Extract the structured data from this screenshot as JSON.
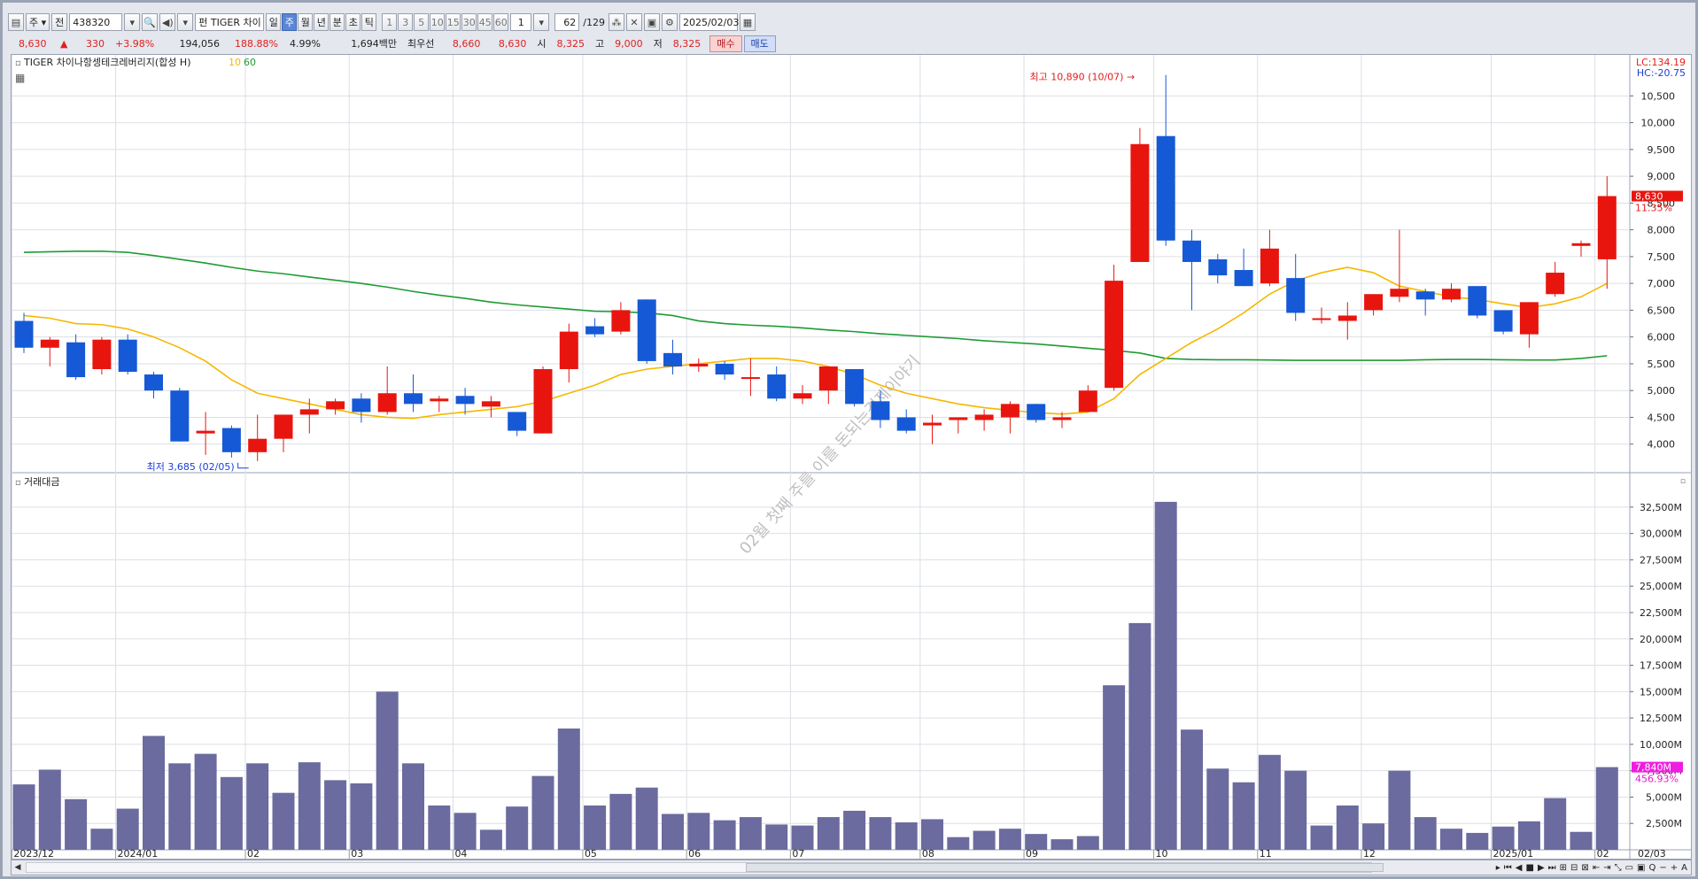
{
  "toolbar": {
    "period_select": "주",
    "mode_label": "전",
    "code": "438320",
    "etf_badge": "펀",
    "name": "TIGER 차이",
    "timeframes": [
      "일",
      "주",
      "월",
      "년",
      "분",
      "초",
      "틱"
    ],
    "selected_timeframe": "주",
    "intervals": [
      "1",
      "3",
      "5",
      "10",
      "15",
      "30",
      "45",
      "60"
    ],
    "interval_value": "1",
    "count_value": "62",
    "count_total": "/129",
    "date": "2025/02/03"
  },
  "quote": {
    "price": "8,630",
    "arrow": "▲",
    "change": "330",
    "change_pct": "+3.98%",
    "volume": "194,056",
    "volume_ratio": "188.88%",
    "turnover": "4.99%",
    "amount": "1,694백만",
    "best_bid_label": "최우선",
    "best_ask": "8,660",
    "best_bid": "8,630",
    "open_label": "시",
    "open": "8,325",
    "high_label": "고",
    "high": "9,000",
    "low_label": "저",
    "low": "8,325",
    "buy_label": "매수",
    "sell_label": "매도"
  },
  "colors": {
    "up": "#e8150f",
    "down": "#1559d6",
    "ma10": "#f5b800",
    "ma60": "#1e9b33",
    "volume_bar": "#6b6b9f",
    "price_tag_bg": "#e8150f",
    "volume_tag_bg": "#f01ce0"
  },
  "chart_data": {
    "type": "candlestick",
    "title": "TIGER 차이나항셍테크레버리지(합성 H)",
    "ma_labels": [
      "10",
      "60"
    ],
    "corner_labels": [
      "LC:134.19",
      "HC:-20.75"
    ],
    "y_ticks": [
      4000,
      4500,
      5000,
      5500,
      6000,
      6500,
      7000,
      7500,
      8000,
      8500,
      9000,
      9500,
      10000,
      10500
    ],
    "y_range": [
      3500,
      11100
    ],
    "max_annotation": "최고 10,890 (10/07)",
    "min_annotation": "최저 3,685 (02/05)",
    "last_price_tag": "8,630",
    "last_change_tag": "11.35%",
    "watermark": "02월 첫째 주를 이를 돈되는경제이야기",
    "x_labels": [
      {
        "i": 0,
        "text": "2023/12"
      },
      {
        "i": 4,
        "text": "2024/01"
      },
      {
        "i": 9,
        "text": "02"
      },
      {
        "i": 13,
        "text": "03"
      },
      {
        "i": 17,
        "text": "04"
      },
      {
        "i": 22,
        "text": "05"
      },
      {
        "i": 26,
        "text": "06"
      },
      {
        "i": 30,
        "text": "07"
      },
      {
        "i": 35,
        "text": "08"
      },
      {
        "i": 39,
        "text": "09"
      },
      {
        "i": 44,
        "text": "10"
      },
      {
        "i": 48,
        "text": "11"
      },
      {
        "i": 52,
        "text": "12"
      },
      {
        "i": 57,
        "text": "2025/01"
      },
      {
        "i": 61,
        "text": "02"
      }
    ],
    "right_axis_date": "02/03",
    "candles": [
      {
        "o": 6300,
        "h": 6450,
        "l": 5700,
        "c": 5800
      },
      {
        "o": 5800,
        "h": 6000,
        "l": 5450,
        "c": 5950
      },
      {
        "o": 5900,
        "h": 6050,
        "l": 5200,
        "c": 5250
      },
      {
        "o": 5400,
        "h": 6000,
        "l": 5300,
        "c": 5950
      },
      {
        "o": 5950,
        "h": 6050,
        "l": 5300,
        "c": 5350
      },
      {
        "o": 5300,
        "h": 5350,
        "l": 4850,
        "c": 5000
      },
      {
        "o": 5000,
        "h": 5050,
        "l": 4050,
        "c": 4050
      },
      {
        "o": 4200,
        "h": 4600,
        "l": 3800,
        "c": 4250
      },
      {
        "o": 4300,
        "h": 4350,
        "l": 3750,
        "c": 3850
      },
      {
        "o": 3850,
        "h": 4550,
        "l": 3685,
        "c": 4100
      },
      {
        "o": 4100,
        "h": 4550,
        "l": 3850,
        "c": 4550
      },
      {
        "o": 4550,
        "h": 4850,
        "l": 4200,
        "c": 4650
      },
      {
        "o": 4650,
        "h": 4850,
        "l": 4550,
        "c": 4800
      },
      {
        "o": 4850,
        "h": 4950,
        "l": 4400,
        "c": 4600
      },
      {
        "o": 4600,
        "h": 5450,
        "l": 4550,
        "c": 4950
      },
      {
        "o": 4950,
        "h": 5300,
        "l": 4600,
        "c": 4750
      },
      {
        "o": 4800,
        "h": 4900,
        "l": 4600,
        "c": 4850
      },
      {
        "o": 4900,
        "h": 5050,
        "l": 4550,
        "c": 4750
      },
      {
        "o": 4700,
        "h": 4900,
        "l": 4500,
        "c": 4800
      },
      {
        "o": 4600,
        "h": 4600,
        "l": 4150,
        "c": 4250
      },
      {
        "o": 4200,
        "h": 5450,
        "l": 4200,
        "c": 5400
      },
      {
        "o": 5400,
        "h": 6250,
        "l": 5150,
        "c": 6100
      },
      {
        "o": 6200,
        "h": 6350,
        "l": 6000,
        "c": 6050
      },
      {
        "o": 6100,
        "h": 6650,
        "l": 6050,
        "c": 6500
      },
      {
        "o": 6700,
        "h": 6700,
        "l": 5500,
        "c": 5550
      },
      {
        "o": 5700,
        "h": 5950,
        "l": 5300,
        "c": 5450
      },
      {
        "o": 5450,
        "h": 5600,
        "l": 5350,
        "c": 5500
      },
      {
        "o": 5500,
        "h": 5550,
        "l": 5200,
        "c": 5300
      },
      {
        "o": 5250,
        "h": 5600,
        "l": 4900,
        "c": 5250
      },
      {
        "o": 5300,
        "h": 5450,
        "l": 4800,
        "c": 4850
      },
      {
        "o": 4850,
        "h": 5100,
        "l": 4750,
        "c": 4950
      },
      {
        "o": 5000,
        "h": 5450,
        "l": 4750,
        "c": 5450
      },
      {
        "o": 5400,
        "h": 5400,
        "l": 4700,
        "c": 4750
      },
      {
        "o": 4800,
        "h": 5000,
        "l": 4300,
        "c": 4450
      },
      {
        "o": 4500,
        "h": 4650,
        "l": 4200,
        "c": 4250
      },
      {
        "o": 4350,
        "h": 4550,
        "l": 4000,
        "c": 4400
      },
      {
        "o": 4450,
        "h": 4500,
        "l": 4200,
        "c": 4500
      },
      {
        "o": 4450,
        "h": 4650,
        "l": 4250,
        "c": 4550
      },
      {
        "o": 4500,
        "h": 4800,
        "l": 4200,
        "c": 4750
      },
      {
        "o": 4750,
        "h": 4750,
        "l": 4400,
        "c": 4450
      },
      {
        "o": 4450,
        "h": 4600,
        "l": 4300,
        "c": 4500
      },
      {
        "o": 4600,
        "h": 5100,
        "l": 4600,
        "c": 5000
      },
      {
        "o": 5050,
        "h": 7350,
        "l": 5000,
        "c": 7050
      },
      {
        "o": 7400,
        "h": 9900,
        "l": 7400,
        "c": 9600
      },
      {
        "o": 9750,
        "h": 10890,
        "l": 7700,
        "c": 7800
      },
      {
        "o": 7800,
        "h": 8000,
        "l": 6500,
        "c": 7400
      },
      {
        "o": 7450,
        "h": 7550,
        "l": 7000,
        "c": 7150
      },
      {
        "o": 7250,
        "h": 7650,
        "l": 6950,
        "c": 6950
      },
      {
        "o": 7000,
        "h": 8000,
        "l": 6950,
        "c": 7650
      },
      {
        "o": 7100,
        "h": 7550,
        "l": 6300,
        "c": 6450
      },
      {
        "o": 6350,
        "h": 6550,
        "l": 6250,
        "c": 6350
      },
      {
        "o": 6300,
        "h": 6650,
        "l": 5950,
        "c": 6400
      },
      {
        "o": 6500,
        "h": 6800,
        "l": 6400,
        "c": 6800
      },
      {
        "o": 6750,
        "h": 8000,
        "l": 6650,
        "c": 6900
      },
      {
        "o": 6850,
        "h": 6900,
        "l": 6400,
        "c": 6700
      },
      {
        "o": 6700,
        "h": 7000,
        "l": 6650,
        "c": 6900
      },
      {
        "o": 6950,
        "h": 6950,
        "l": 6350,
        "c": 6400
      },
      {
        "o": 6500,
        "h": 6500,
        "l": 6050,
        "c": 6100
      },
      {
        "o": 6050,
        "h": 6650,
        "l": 5800,
        "c": 6650
      },
      {
        "o": 6800,
        "h": 7400,
        "l": 6750,
        "c": 7200
      },
      {
        "o": 7700,
        "h": 7800,
        "l": 7500,
        "c": 7750
      },
      {
        "o": 7450,
        "h": 9000,
        "l": 6900,
        "c": 8630
      }
    ],
    "ma10": [
      6400,
      6350,
      6250,
      6230,
      6150,
      6000,
      5800,
      5550,
      5200,
      4950,
      4850,
      4750,
      4650,
      4550,
      4500,
      4480,
      4550,
      4600,
      4650,
      4700,
      4800,
      4950,
      5100,
      5300,
      5400,
      5450,
      5500,
      5550,
      5600,
      5600,
      5550,
      5450,
      5300,
      5100,
      4950,
      4850,
      4750,
      4680,
      4630,
      4590,
      4560,
      4600,
      4850,
      5300,
      5600,
      5900,
      6150,
      6450,
      6800,
      7050,
      7200,
      7300,
      7200,
      6950,
      6850,
      6750,
      6700,
      6620,
      6550,
      6620,
      6750,
      7000
    ],
    "ma60": [
      7580,
      7590,
      7600,
      7600,
      7580,
      7520,
      7450,
      7380,
      7300,
      7230,
      7180,
      7120,
      7060,
      7000,
      6930,
      6850,
      6780,
      6720,
      6650,
      6600,
      6560,
      6520,
      6480,
      6470,
      6450,
      6400,
      6300,
      6250,
      6220,
      6200,
      6170,
      6130,
      6100,
      6060,
      6030,
      6000,
      5970,
      5930,
      5900,
      5870,
      5830,
      5790,
      5750,
      5700,
      5600,
      5580,
      5575,
      5575,
      5570,
      5565,
      5565,
      5565,
      5565,
      5565,
      5575,
      5580,
      5580,
      5575,
      5570,
      5570,
      5600,
      5650
    ],
    "volume_title": "거래대금",
    "volume_ticks": [
      "2,500M",
      "5,000M",
      "7,500M",
      "10,000M",
      "12,500M",
      "15,000M",
      "17,500M",
      "20,000M",
      "22,500M",
      "25,000M",
      "27,500M",
      "30,000M",
      "32,500M"
    ],
    "volume_range": [
      0,
      34000
    ],
    "volume_tag": "7,840M",
    "volume_pct_tag": "456.93%",
    "volume": [
      6200,
      7600,
      4800,
      2000,
      3900,
      10800,
      8200,
      9100,
      6900,
      8200,
      5400,
      8300,
      6600,
      6300,
      15000,
      8200,
      4200,
      3500,
      1900,
      4100,
      7000,
      11500,
      4200,
      5300,
      5900,
      3400,
      3500,
      2800,
      3100,
      2400,
      2300,
      3100,
      3700,
      3100,
      2600,
      2900,
      1200,
      1800,
      2000,
      1500,
      1000,
      1300,
      15600,
      21500,
      33000,
      11400,
      7700,
      6400,
      9000,
      7500,
      2300,
      4200,
      2500,
      7500,
      3100,
      2000,
      1600,
      2200,
      2700,
      4900,
      1700,
      7840
    ]
  },
  "scroll_tools": [
    "▸",
    "⏮",
    "◀",
    "■",
    "▶",
    "⏭",
    "⊞",
    "⊟",
    "⊠",
    "⇤",
    "⇥",
    "⤡",
    "▭",
    "▣",
    "Q",
    "−",
    "+",
    "A"
  ]
}
